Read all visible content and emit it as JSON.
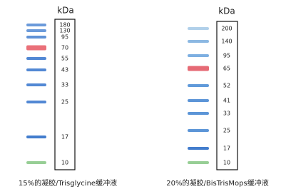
{
  "panels": [
    {
      "unit": "kDa",
      "caption": "15%的凝胶/Trisglycine缓冲液",
      "markers": [
        {
          "label": "180",
          "color": "#5b8fd6"
        },
        {
          "label": "130",
          "color": "#5b8fd6"
        },
        {
          "label": "95",
          "color": "#4f86d2"
        },
        {
          "label": "70",
          "color": "#e8606a"
        },
        {
          "label": "55",
          "color": "#3f7bcf"
        },
        {
          "label": "43",
          "color": "#3f7bcf"
        },
        {
          "label": "33",
          "color": "#3f7bcf"
        },
        {
          "label": "25",
          "color": "#3f7bcf"
        },
        {
          "label": "17",
          "color": "#2f6fc8"
        },
        {
          "label": "10",
          "color": "#8cc98a"
        }
      ]
    },
    {
      "unit": "kDa",
      "caption": "20%的凝胶/BisTrisMops缓冲液",
      "markers": [
        {
          "label": "200",
          "color": "#a9cbe8"
        },
        {
          "label": "140",
          "color": "#7fb0df"
        },
        {
          "label": "95",
          "color": "#6fa6de"
        },
        {
          "label": "65",
          "color": "#e35a66"
        },
        {
          "label": "52",
          "color": "#4f8fd6"
        },
        {
          "label": "41",
          "color": "#4a89d3"
        },
        {
          "label": "33",
          "color": "#4a89d3"
        },
        {
          "label": "25",
          "color": "#4a89d3"
        },
        {
          "label": "17",
          "color": "#2f6fc8"
        },
        {
          "label": "10",
          "color": "#8cc98a"
        }
      ]
    }
  ]
}
